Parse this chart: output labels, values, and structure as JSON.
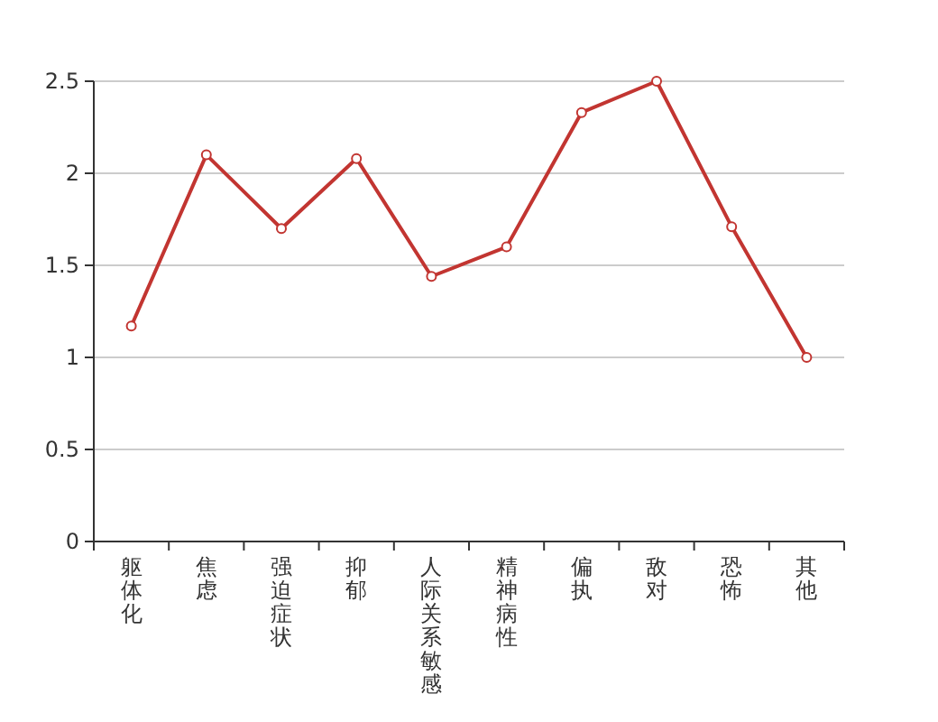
{
  "chart_data": {
    "type": "line",
    "categories": [
      "躯体化",
      "焦虑",
      "强迫症状",
      "抑郁",
      "人际关系敏感",
      "精神病性",
      "偏执",
      "敌对",
      "恐怖",
      "其他"
    ],
    "series": [
      {
        "color": "#c23531",
        "values": [
          1.17,
          2.1,
          1.7,
          2.08,
          1.44,
          1.6,
          2.33,
          2.5,
          1.71,
          1.0
        ]
      }
    ],
    "ylim": [
      0,
      2.5
    ],
    "yticks": [
      0,
      0.5,
      1,
      1.5,
      2,
      2.5
    ],
    "grid": "y",
    "marker": "circle",
    "line_style": "solid"
  }
}
